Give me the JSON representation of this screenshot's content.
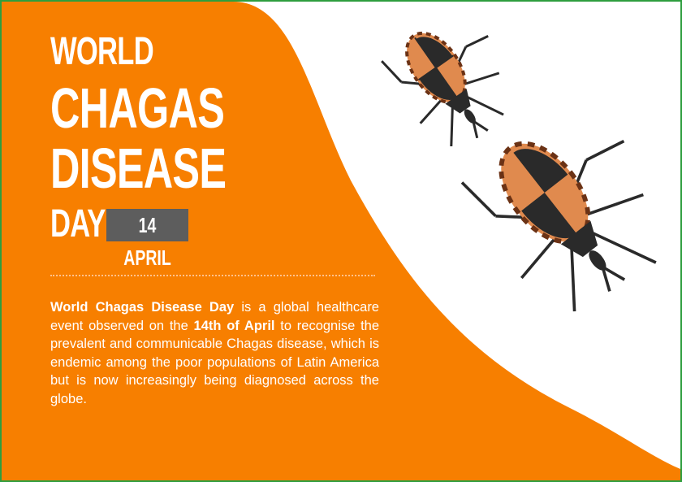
{
  "title": {
    "line1": "WORLD",
    "line2": "CHAGAS",
    "line3": "DISEASE",
    "line4": "DAY",
    "date": "14 APRIL"
  },
  "description": [
    "World Chagas Disease Day",
    " is a global healthcare event observed on the ",
    "14th of April",
    " to recognise the prevalent and communicable Chagas disease, which is endemic among the poor populations of Latin America but is now increasingly being diagnosed across the globe."
  ]
}
